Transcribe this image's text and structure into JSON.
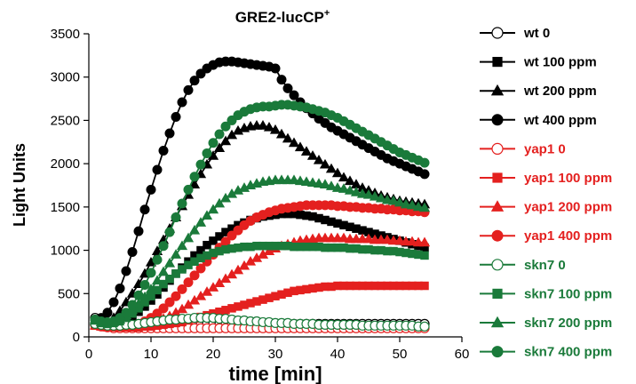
{
  "chart_data": {
    "type": "line",
    "title": "GRE2-lucCP",
    "title_superscript": "+",
    "xlabel": "time [min]",
    "ylabel": "Light Units",
    "xlim": [
      0,
      60
    ],
    "ylim": [
      0,
      3500
    ],
    "xticks": [
      0,
      10,
      20,
      30,
      40,
      50,
      60
    ],
    "yticks": [
      0,
      500,
      1000,
      1500,
      2000,
      2500,
      3000,
      3500
    ],
    "grid": false,
    "legend_position": "right",
    "x": [
      1,
      2,
      3,
      4,
      5,
      6,
      7,
      8,
      9,
      10,
      11,
      12,
      13,
      14,
      15,
      16,
      17,
      18,
      19,
      20,
      21,
      22,
      23,
      24,
      25,
      26,
      27,
      28,
      29,
      30,
      31,
      32,
      33,
      34,
      35,
      36,
      37,
      38,
      39,
      40,
      41,
      42,
      43,
      44,
      45,
      46,
      47,
      48,
      49,
      50,
      51,
      52,
      53,
      54
    ],
    "series": [
      {
        "name": "wt 0",
        "color": "#000000",
        "marker": "circle",
        "filled": false,
        "line": false,
        "values": [
          220,
          160,
          130,
          140,
          130,
          130,
          130,
          140,
          150,
          150,
          150,
          150,
          150,
          150,
          150,
          150,
          150,
          150,
          150,
          150,
          150,
          150,
          150,
          150,
          150,
          150,
          150,
          150,
          150,
          150,
          150,
          150,
          150,
          150,
          150,
          150,
          150,
          150,
          150,
          150,
          150,
          150,
          150,
          150,
          150,
          150,
          150,
          150,
          150,
          150,
          150,
          150,
          150,
          150
        ]
      },
      {
        "name": "wt 100 ppm",
        "color": "#000000",
        "marker": "square",
        "filled": true,
        "line": true,
        "values": [
          160,
          140,
          140,
          150,
          170,
          200,
          240,
          290,
          350,
          420,
          490,
          570,
          650,
          730,
          800,
          870,
          940,
          1000,
          1060,
          1110,
          1160,
          1210,
          1250,
          1290,
          1320,
          1350,
          1370,
          1390,
          1400,
          1410,
          1420,
          1420,
          1420,
          1410,
          1400,
          1390,
          1370,
          1350,
          1330,
          1310,
          1290,
          1270,
          1250,
          1230,
          1210,
          1190,
          1170,
          1150,
          1130,
          1110,
          1090,
          1070,
          1050,
          1030
        ]
      },
      {
        "name": "wt 200 ppm",
        "color": "#000000",
        "marker": "triangle",
        "filled": true,
        "line": true,
        "values": [
          180,
          150,
          180,
          220,
          300,
          400,
          500,
          610,
          730,
          860,
          990,
          1120,
          1250,
          1380,
          1510,
          1640,
          1760,
          1880,
          1990,
          2090,
          2180,
          2260,
          2330,
          2380,
          2410,
          2430,
          2440,
          2440,
          2420,
          2390,
          2340,
          2290,
          2240,
          2190,
          2140,
          2090,
          2040,
          1990,
          1940,
          1890,
          1840,
          1800,
          1760,
          1720,
          1690,
          1660,
          1630,
          1610,
          1590,
          1570,
          1560,
          1550,
          1540,
          1530
        ]
      },
      {
        "name": "wt 400 ppm",
        "color": "#000000",
        "marker": "circle",
        "filled": true,
        "line": true,
        "values": [
          200,
          220,
          280,
          400,
          560,
          760,
          980,
          1220,
          1470,
          1700,
          1930,
          2150,
          2350,
          2540,
          2710,
          2850,
          2960,
          3040,
          3100,
          3140,
          3170,
          3180,
          3180,
          3170,
          3160,
          3150,
          3140,
          3130,
          3120,
          3100,
          2970,
          2870,
          2790,
          2710,
          2640,
          2580,
          2520,
          2470,
          2420,
          2380,
          2340,
          2300,
          2260,
          2220,
          2180,
          2140,
          2100,
          2060,
          2030,
          2000,
          1970,
          1940,
          1910,
          1880
        ]
      },
      {
        "name": "yap1 0",
        "color": "#e4201f",
        "marker": "circle",
        "filled": false,
        "line": false,
        "values": [
          140,
          120,
          110,
          100,
          100,
          100,
          100,
          100,
          100,
          100,
          100,
          100,
          100,
          100,
          100,
          100,
          100,
          100,
          100,
          100,
          100,
          100,
          100,
          100,
          100,
          100,
          100,
          100,
          100,
          100,
          100,
          100,
          100,
          100,
          100,
          100,
          100,
          100,
          100,
          100,
          100,
          100,
          100,
          100,
          100,
          100,
          100,
          100,
          100,
          100,
          100,
          100,
          100,
          100
        ]
      },
      {
        "name": "yap1 100 ppm",
        "color": "#e4201f",
        "marker": "square",
        "filled": true,
        "line": true,
        "values": [
          130,
          120,
          110,
          110,
          110,
          110,
          110,
          110,
          120,
          120,
          130,
          140,
          150,
          160,
          170,
          190,
          210,
          230,
          250,
          270,
          290,
          310,
          330,
          350,
          370,
          390,
          410,
          430,
          450,
          470,
          490,
          510,
          530,
          540,
          550,
          560,
          570,
          580,
          580,
          590,
          590,
          590,
          590,
          590,
          590,
          590,
          590,
          590,
          590,
          590,
          590,
          590,
          590,
          590
        ]
      },
      {
        "name": "yap1 200 ppm",
        "color": "#e4201f",
        "marker": "triangle",
        "filled": true,
        "line": true,
        "values": [
          130,
          120,
          110,
          110,
          110,
          110,
          120,
          130,
          140,
          160,
          180,
          210,
          240,
          280,
          320,
          370,
          420,
          470,
          520,
          570,
          620,
          670,
          720,
          770,
          820,
          870,
          910,
          950,
          990,
          1020,
          1050,
          1070,
          1090,
          1110,
          1120,
          1130,
          1140,
          1140,
          1140,
          1140,
          1140,
          1130,
          1130,
          1130,
          1130,
          1120,
          1120,
          1120,
          1110,
          1110,
          1100,
          1100,
          1090,
          1090
        ]
      },
      {
        "name": "yap1 400 ppm",
        "color": "#e4201f",
        "marker": "circle",
        "filled": true,
        "line": true,
        "values": [
          140,
          130,
          120,
          120,
          120,
          120,
          130,
          150,
          180,
          220,
          270,
          330,
          400,
          470,
          550,
          630,
          710,
          790,
          870,
          950,
          1030,
          1100,
          1170,
          1230,
          1290,
          1340,
          1380,
          1410,
          1440,
          1460,
          1480,
          1490,
          1500,
          1510,
          1520,
          1520,
          1520,
          1520,
          1520,
          1510,
          1510,
          1500,
          1500,
          1490,
          1490,
          1480,
          1480,
          1470,
          1470,
          1460,
          1460,
          1450,
          1450,
          1440
        ]
      },
      {
        "name": "skn7 0",
        "color": "#1a7a3a",
        "marker": "circle",
        "filled": false,
        "line": false,
        "values": [
          150,
          140,
          130,
          130,
          130,
          140,
          140,
          150,
          160,
          170,
          180,
          190,
          200,
          200,
          210,
          210,
          220,
          220,
          220,
          220,
          210,
          210,
          200,
          190,
          190,
          180,
          180,
          170,
          170,
          160,
          160,
          160,
          150,
          150,
          150,
          150,
          140,
          140,
          140,
          140,
          140,
          140,
          140,
          130,
          130,
          130,
          130,
          130,
          130,
          130,
          130,
          130,
          120,
          120
        ]
      },
      {
        "name": "skn7 100 ppm",
        "color": "#1a7a3a",
        "marker": "square",
        "filled": true,
        "line": true,
        "values": [
          190,
          160,
          150,
          160,
          180,
          220,
          270,
          330,
          400,
          470,
          540,
          610,
          670,
          730,
          780,
          830,
          870,
          910,
          940,
          970,
          990,
          1010,
          1020,
          1030,
          1040,
          1040,
          1050,
          1050,
          1050,
          1050,
          1050,
          1050,
          1040,
          1040,
          1040,
          1040,
          1040,
          1030,
          1030,
          1030,
          1030,
          1020,
          1020,
          1010,
          1010,
          1000,
          1000,
          990,
          990,
          980,
          970,
          960,
          950,
          940
        ]
      },
      {
        "name": "skn7 200 ppm",
        "color": "#1a7a3a",
        "marker": "triangle",
        "filled": true,
        "line": true,
        "values": [
          200,
          170,
          160,
          170,
          200,
          250,
          310,
          380,
          460,
          550,
          650,
          750,
          850,
          950,
          1050,
          1140,
          1230,
          1320,
          1400,
          1470,
          1540,
          1600,
          1650,
          1690,
          1720,
          1750,
          1770,
          1790,
          1800,
          1810,
          1810,
          1810,
          1810,
          1800,
          1790,
          1780,
          1770,
          1760,
          1740,
          1720,
          1710,
          1690,
          1670,
          1650,
          1640,
          1620,
          1600,
          1580,
          1570,
          1550,
          1530,
          1520,
          1500,
          1490
        ]
      },
      {
        "name": "skn7 400 ppm",
        "color": "#1a7a3a",
        "marker": "circle",
        "filled": true,
        "line": true,
        "values": [
          200,
          180,
          170,
          180,
          220,
          280,
          370,
          480,
          600,
          740,
          890,
          1050,
          1210,
          1380,
          1540,
          1700,
          1850,
          1990,
          2120,
          2240,
          2340,
          2430,
          2500,
          2560,
          2600,
          2630,
          2650,
          2660,
          2660,
          2670,
          2680,
          2680,
          2670,
          2660,
          2650,
          2630,
          2610,
          2590,
          2560,
          2530,
          2490,
          2450,
          2410,
          2370,
          2330,
          2290,
          2250,
          2210,
          2170,
          2130,
          2100,
          2070,
          2040,
          2010
        ]
      }
    ]
  }
}
